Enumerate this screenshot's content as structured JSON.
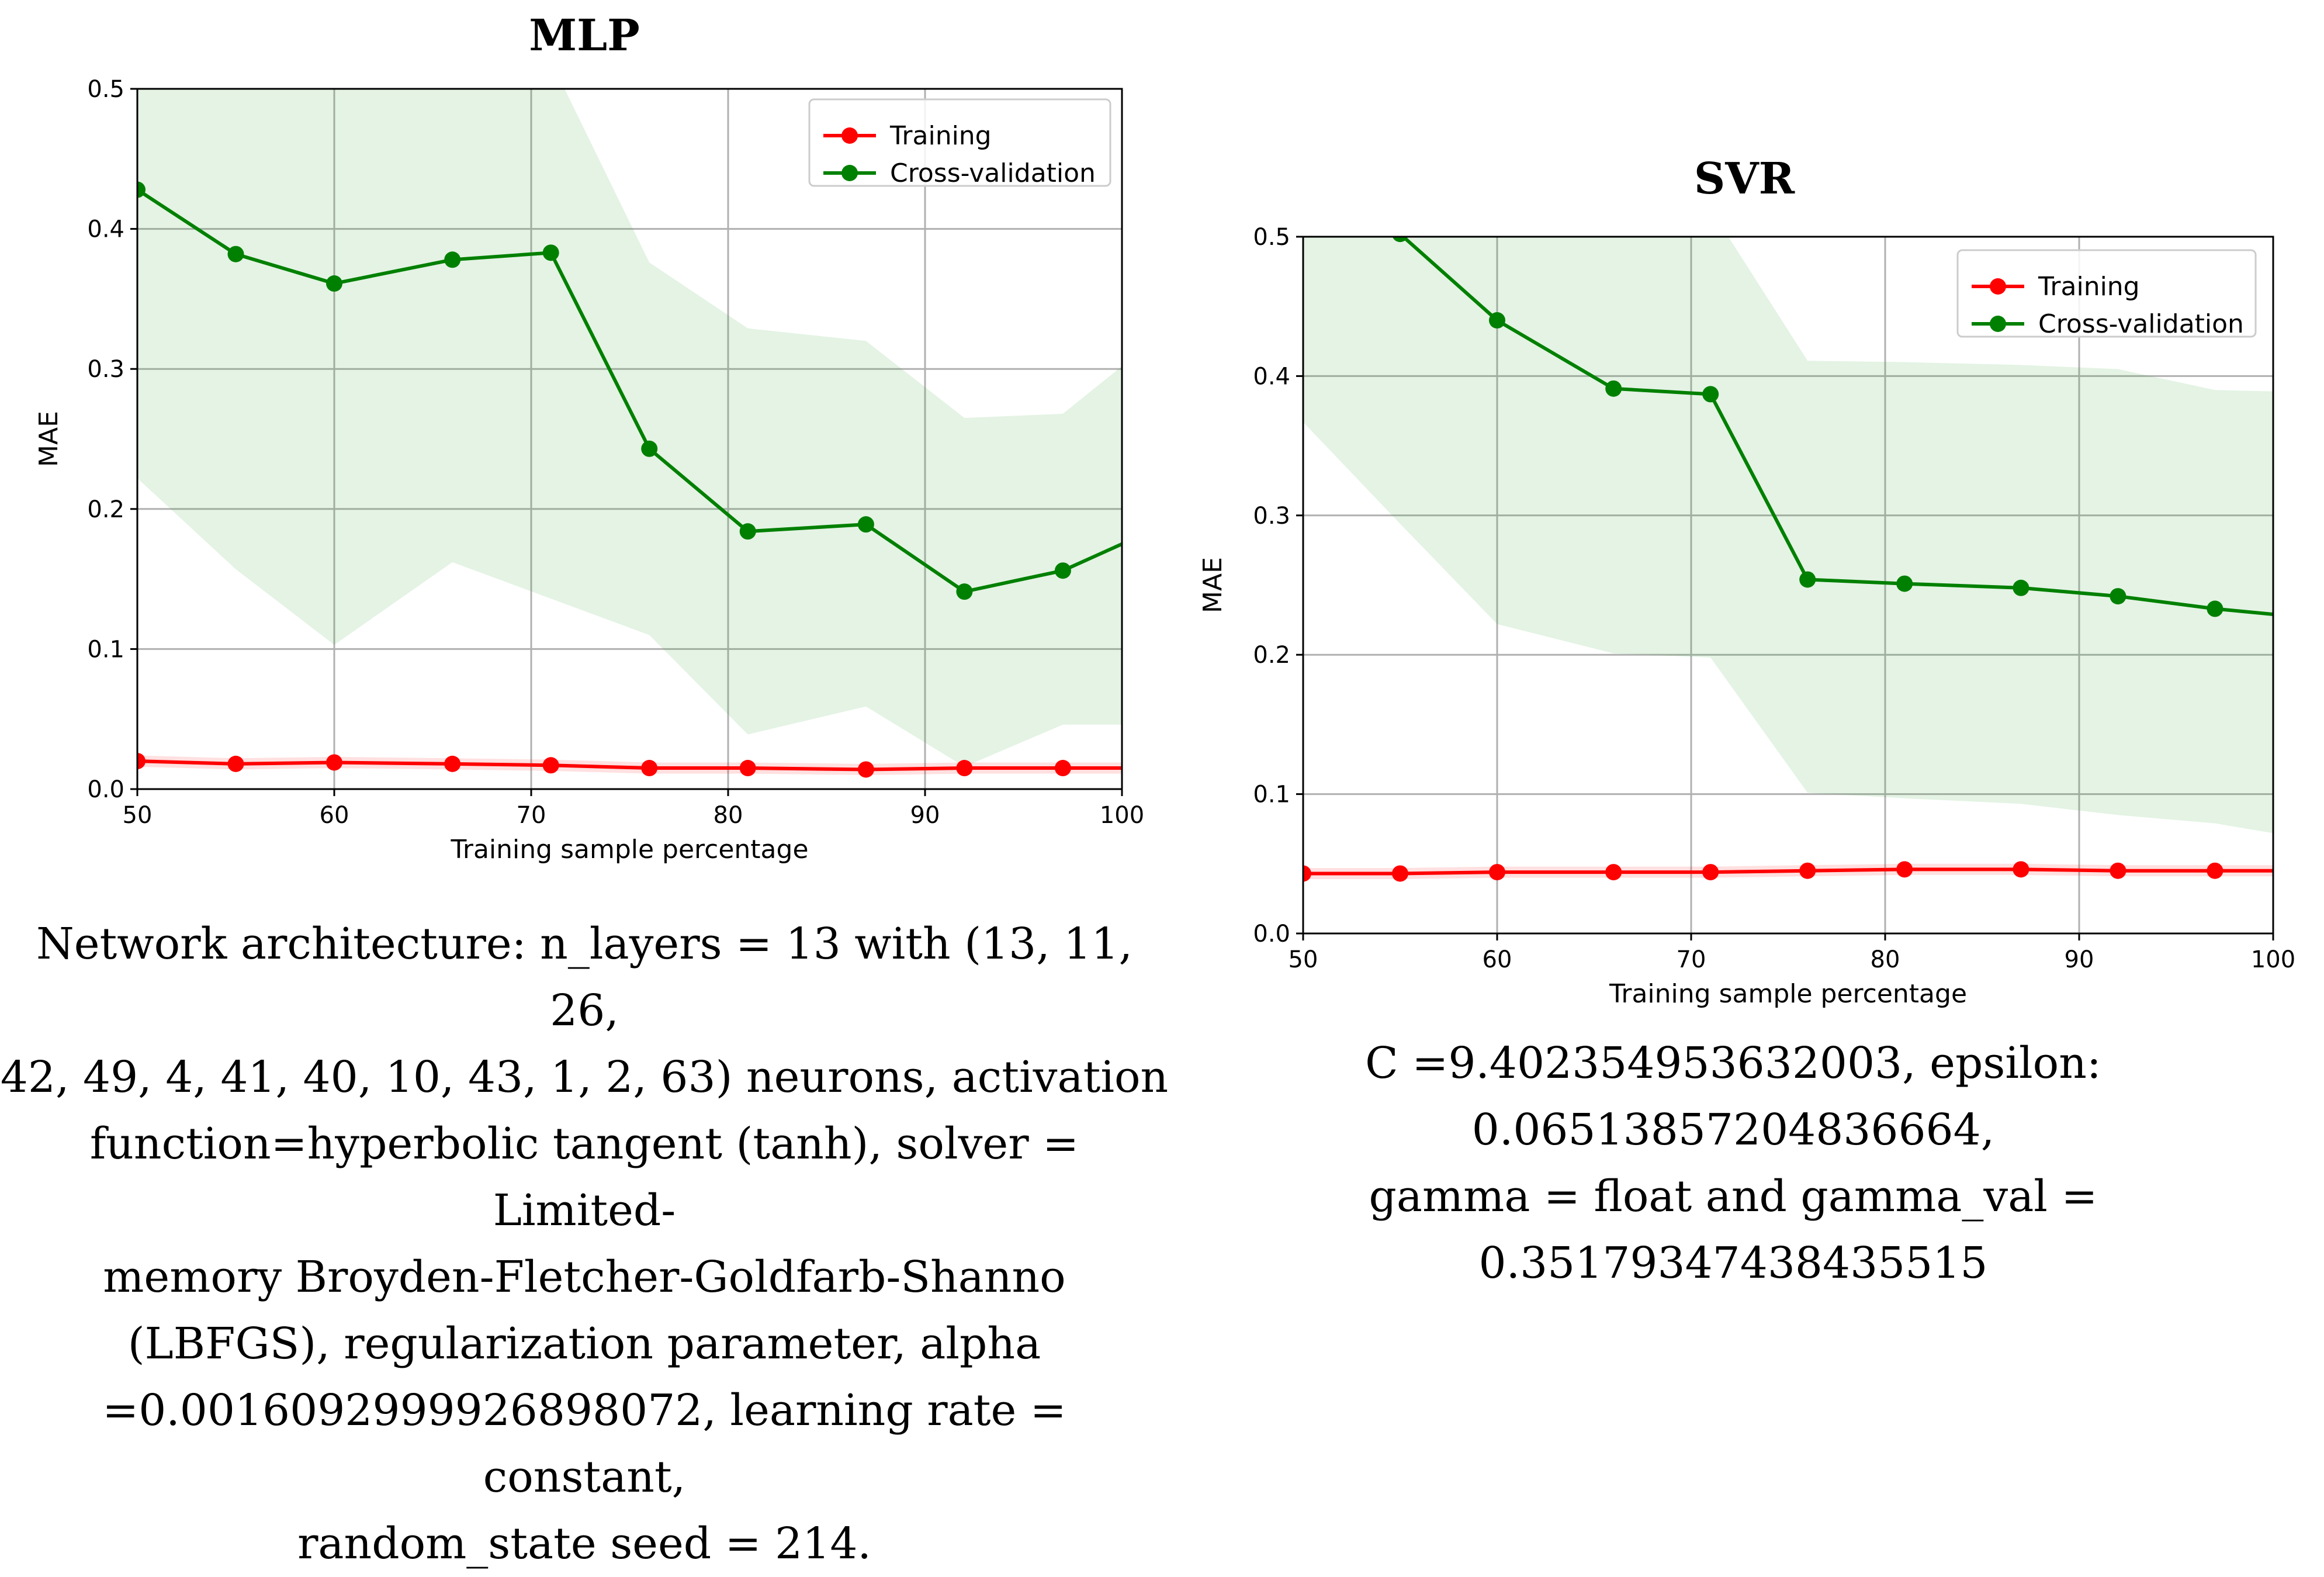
{
  "chart_data": [
    {
      "id": "mlp",
      "type": "line",
      "title": "MLP",
      "xlabel": "Training sample percentage",
      "ylabel": "MAE",
      "xlim": [
        50,
        100
      ],
      "ylim": [
        0.0,
        0.5
      ],
      "xticks": [
        "50",
        "60",
        "70",
        "80",
        "90",
        "100"
      ],
      "yticks": [
        "0.0",
        "0.1",
        "0.2",
        "0.3",
        "0.4",
        "0.5"
      ],
      "grid": true,
      "legend_position": "top-right",
      "legend": [
        "Training",
        "Cross-validation"
      ],
      "x": [
        50,
        55,
        60,
        66,
        71,
        76,
        81,
        87,
        92,
        97,
        100
      ],
      "series": [
        {
          "name": "Training",
          "color": "#ff0000",
          "values": [
            0.02,
            0.018,
            0.019,
            0.018,
            0.017,
            0.015,
            0.015,
            0.014,
            0.015,
            0.015,
            0.015
          ],
          "band_upper": [
            0.024,
            0.022,
            0.023,
            0.022,
            0.021,
            0.019,
            0.019,
            0.018,
            0.019,
            0.019,
            0.019
          ],
          "band_lower": [
            0.016,
            0.014,
            0.015,
            0.014,
            0.013,
            0.011,
            0.011,
            0.01,
            0.011,
            0.011,
            0.011
          ],
          "markers_until": 97
        },
        {
          "name": "Cross-validation",
          "color": "#008000",
          "values": [
            0.428,
            0.382,
            0.361,
            0.378,
            0.383,
            0.243,
            0.184,
            0.189,
            0.141,
            0.156,
            0.175
          ],
          "band_upper": [
            0.52,
            0.52,
            0.52,
            0.52,
            0.52,
            0.376,
            0.329,
            0.32,
            0.265,
            0.268,
            0.302
          ],
          "band_lower": [
            0.222,
            0.157,
            0.103,
            0.162,
            0.136,
            0.11,
            0.039,
            0.059,
            0.016,
            0.046,
            0.046
          ],
          "markers_until": 97
        }
      ],
      "band_color": "#2ca02c"
    },
    {
      "id": "svr",
      "type": "line",
      "title": "SVR",
      "xlabel": "Training sample percentage",
      "ylabel": "MAE",
      "xlim": [
        50,
        100
      ],
      "ylim": [
        0.0,
        0.5
      ],
      "xticks": [
        "50",
        "60",
        "70",
        "80",
        "90",
        "100"
      ],
      "yticks": [
        "0.0",
        "0.1",
        "0.2",
        "0.3",
        "0.4",
        "0.5"
      ],
      "grid": true,
      "legend_position": "top-right",
      "legend": [
        "Training",
        "Cross-validation"
      ],
      "x": [
        50,
        55,
        60,
        66,
        71,
        76,
        81,
        87,
        92,
        97,
        100
      ],
      "series": [
        {
          "name": "Training",
          "color": "#ff0000",
          "values": [
            0.043,
            0.043,
            0.044,
            0.044,
            0.044,
            0.045,
            0.046,
            0.046,
            0.045,
            0.045,
            0.045
          ],
          "band_upper": [
            0.047,
            0.047,
            0.048,
            0.048,
            0.048,
            0.049,
            0.05,
            0.05,
            0.049,
            0.049,
            0.049
          ],
          "band_lower": [
            0.039,
            0.039,
            0.04,
            0.04,
            0.04,
            0.041,
            0.042,
            0.042,
            0.041,
            0.041,
            0.041
          ],
          "markers_until": 97
        },
        {
          "name": "Cross-validation",
          "color": "#008000",
          "values": [
            0.52,
            0.502,
            0.44,
            0.391,
            0.387,
            0.254,
            0.251,
            0.248,
            0.242,
            0.233,
            0.229
          ],
          "band_upper": [
            0.52,
            0.52,
            0.52,
            0.52,
            0.52,
            0.411,
            0.41,
            0.408,
            0.405,
            0.39,
            0.389
          ],
          "band_lower": [
            0.367,
            0.294,
            0.222,
            0.201,
            0.198,
            0.101,
            0.097,
            0.093,
            0.085,
            0.079,
            0.072
          ],
          "markers_until": 97
        }
      ],
      "band_color": "#2ca02c"
    }
  ],
  "captions": {
    "mlp": [
      "Network architecture: n_layers = 13 with (13, 11, 26,",
      "42, 49, 4, 41, 40, 10, 43, 1, 2, 63) neurons, activation",
      "function=hyperbolic tangent (tanh), solver = Limited-",
      "memory Broyden-Fletcher-Goldfarb-Shanno",
      "(LBFGS), regularization parameter, alpha",
      "=0.0016092999926898072, learning rate = constant,",
      "random_state seed = 214."
    ],
    "svr": [
      "C =9.402354953632003, epsilon: 0.06513857204836664,",
      "gamma = float and gamma_val =",
      "0.35179347438435515"
    ]
  }
}
